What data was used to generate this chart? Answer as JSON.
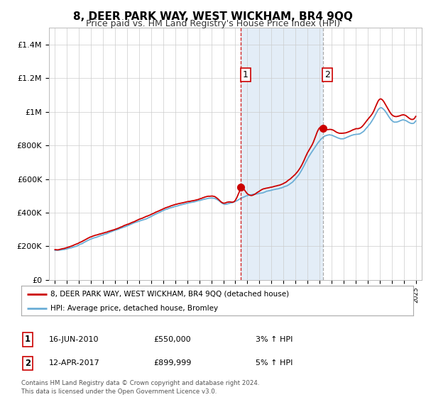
{
  "title": "8, DEER PARK WAY, WEST WICKHAM, BR4 9QQ",
  "subtitle": "Price paid vs. HM Land Registry's House Price Index (HPI)",
  "legend_line1": "8, DEER PARK WAY, WEST WICKHAM, BR4 9QQ (detached house)",
  "legend_line2": "HPI: Average price, detached house, Bromley",
  "transaction1_date": "16-JUN-2010",
  "transaction1_price": "£550,000",
  "transaction1_hpi": "3% ↑ HPI",
  "transaction1_year": 2010.46,
  "transaction1_value": 550000,
  "transaction2_date": "12-APR-2017",
  "transaction2_price": "£899,999",
  "transaction2_hpi": "5% ↑ HPI",
  "transaction2_year": 2017.28,
  "transaction2_value": 899999,
  "footer1": "Contains HM Land Registry data © Crown copyright and database right 2024.",
  "footer2": "This data is licensed under the Open Government Licence v3.0.",
  "ylim": [
    0,
    1500000
  ],
  "xlim_left": 1994.5,
  "xlim_right": 2025.5,
  "yticks": [
    0,
    200000,
    400000,
    600000,
    800000,
    1000000,
    1200000,
    1400000
  ],
  "ytick_labels": [
    "£0",
    "£200K",
    "£400K",
    "£600K",
    "£800K",
    "£1M",
    "£1.2M",
    "£1.4M"
  ],
  "xticks": [
    1995,
    1996,
    1997,
    1998,
    1999,
    2000,
    2001,
    2002,
    2003,
    2004,
    2005,
    2006,
    2007,
    2008,
    2009,
    2010,
    2011,
    2012,
    2013,
    2014,
    2015,
    2016,
    2017,
    2018,
    2019,
    2020,
    2021,
    2022,
    2023,
    2024,
    2025
  ],
  "hpi_color": "#6baed6",
  "price_color": "#cc0000",
  "shade_color": "#dce9f5",
  "vline1_color": "#cc0000",
  "vline2_color": "#888888",
  "grid_color": "#cccccc",
  "background_color": "#ffffff",
  "label_box_color": "#cc0000",
  "title_fontsize": 11,
  "subtitle_fontsize": 9,
  "axis_fontsize": 8,
  "figsize": [
    6.0,
    5.6
  ],
  "dpi": 100,
  "hpi_keypoints_x": [
    1995,
    1996,
    1997,
    1998,
    1999,
    2000,
    2001,
    2002,
    2003,
    2004,
    2005,
    2006,
    2007,
    2008,
    2008.5,
    2009.0,
    2009.5,
    2010,
    2010.5,
    2011,
    2012,
    2013,
    2014,
    2015,
    2015.5,
    2016,
    2016.5,
    2017,
    2017.5,
    2018,
    2018.5,
    2019,
    2019.5,
    2020,
    2020.5,
    2021,
    2021.5,
    2022,
    2022.5,
    2023,
    2023.5,
    2024,
    2024.5,
    2025
  ],
  "hpi_keypoints_y": [
    175000,
    185000,
    210000,
    245000,
    270000,
    295000,
    320000,
    350000,
    380000,
    415000,
    440000,
    460000,
    475000,
    490000,
    480000,
    455000,
    460000,
    470000,
    490000,
    505000,
    520000,
    540000,
    560000,
    610000,
    660000,
    730000,
    790000,
    840000,
    870000,
    875000,
    860000,
    855000,
    870000,
    880000,
    890000,
    930000,
    980000,
    1040000,
    1020000,
    970000,
    960000,
    970000,
    950000,
    960000
  ],
  "price_keypoints_x": [
    1995,
    1996,
    1997,
    1998,
    1999,
    2000,
    2001,
    2002,
    2003,
    2004,
    2005,
    2006,
    2007,
    2008,
    2008.5,
    2009.0,
    2009.5,
    2010,
    2010.5,
    2011,
    2012,
    2013,
    2014,
    2015,
    2015.5,
    2016,
    2016.5,
    2017,
    2017.5,
    2018,
    2018.5,
    2019,
    2019.5,
    2020,
    2020.5,
    2021,
    2021.5,
    2022,
    2022.5,
    2023,
    2023.5,
    2024,
    2024.5,
    2025
  ],
  "price_keypoints_y": [
    180000,
    192000,
    220000,
    255000,
    280000,
    305000,
    332000,
    365000,
    395000,
    428000,
    455000,
    472000,
    490000,
    505000,
    492000,
    465000,
    472000,
    482000,
    550000,
    520000,
    535000,
    555000,
    575000,
    628000,
    678000,
    755000,
    820000,
    900000,
    895000,
    895000,
    876000,
    875000,
    888000,
    900000,
    912000,
    955000,
    1005000,
    1075000,
    1040000,
    985000,
    975000,
    985000,
    962000,
    975000
  ]
}
